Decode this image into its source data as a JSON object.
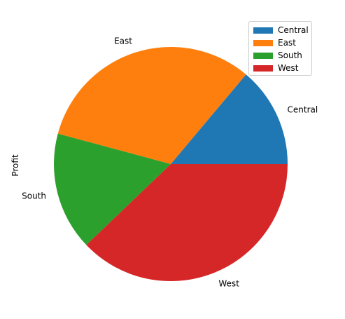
{
  "chart_data": {
    "type": "pie",
    "ylabel": "Profit",
    "categories": [
      "Central",
      "East",
      "South",
      "West"
    ],
    "values": [
      39706,
      91523,
      46749,
      108418
    ],
    "colors": [
      "#1f77b4",
      "#ff7f0e",
      "#2ca02c",
      "#d62728"
    ],
    "legend": {
      "entries": [
        "Central",
        "East",
        "South",
        "West"
      ],
      "placement": "top-right"
    }
  }
}
